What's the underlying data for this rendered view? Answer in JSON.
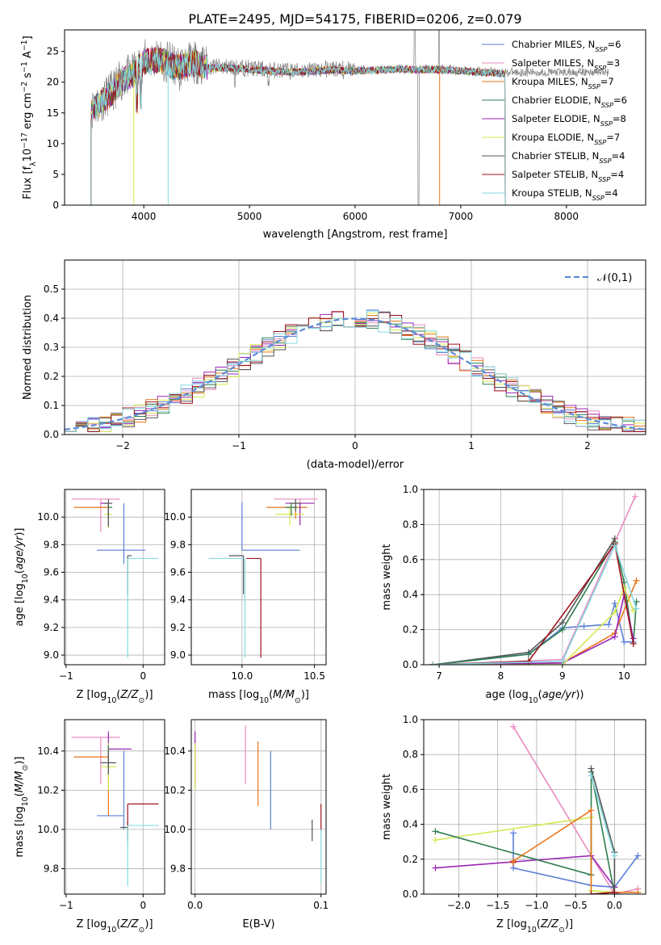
{
  "figure": {
    "title": "PLATE=2495, MJD=54175, FIBERID=0206, z=0.079"
  },
  "chart_data": [
    {
      "id": "spectrum",
      "type": "line",
      "xlabel": "wavelength [Angstrom, rest frame]",
      "ylabel": "Flux [f_λ10^-17 erg cm^-2 s^-1 A^-1]",
      "xlim": [
        3250,
        8750
      ],
      "ylim": [
        0,
        28.5
      ],
      "xticks": [
        4000,
        5000,
        6000,
        7000,
        8000
      ],
      "yticks": [
        0,
        5,
        10,
        15,
        20,
        25
      ],
      "grid": false,
      "legend": "top-right",
      "series": [
        {
          "name": "Chabrier MILES, N_SSP=6",
          "color": "#5b7fd6"
        },
        {
          "name": "Salpeter MILES, N_SSP=3",
          "color": "#e98bbf"
        },
        {
          "name": "Kroupa MILES, N_SSP=7",
          "color": "#e8751a"
        },
        {
          "name": "Chabrier ELODIE, N_SSP=6",
          "color": "#2e7d4f"
        },
        {
          "name": "Salpeter ELODIE, N_SSP=8",
          "color": "#9b26b6"
        },
        {
          "name": "Kroupa ELODIE, N_SSP=7",
          "color": "#d6e84f"
        },
        {
          "name": "Chabrier STELIB, N_SSP=4",
          "color": "#555555"
        },
        {
          "name": "Salpeter STELIB, N_SSP=4",
          "color": "#a0141e"
        },
        {
          "name": "Kroupa STELIB, N_SSP=4",
          "color": "#86d9e0"
        }
      ],
      "data_color": "#808080",
      "profile": {
        "x": [
          3500,
          3600,
          3700,
          3800,
          3900,
          4000,
          4100,
          4200,
          4300,
          4400,
          4500,
          4600,
          4800,
          5000,
          5200,
          5400,
          5600,
          5800,
          6000,
          6200,
          6400,
          6600,
          6800,
          7000,
          7200,
          7400
        ],
        "y": [
          15.5,
          17,
          18.5,
          20.5,
          21.5,
          23.5,
          23.8,
          23.5,
          22.5,
          23,
          23.2,
          22.5,
          22.5,
          22.3,
          22,
          21.8,
          22,
          22.2,
          22,
          22.1,
          22.3,
          22.2,
          22.2,
          22,
          21.8,
          21.6
        ]
      },
      "model_range": [
        3500,
        7420
      ],
      "data_range": [
        3500,
        8400
      ]
    },
    {
      "id": "residuals",
      "type": "bar",
      "xlabel": "(data-model)/error",
      "ylabel": "Normed distribution",
      "xlim": [
        -2.5,
        2.5
      ],
      "ylim": [
        0,
        0.6
      ],
      "xticks": [
        -2,
        -1,
        0,
        1,
        2
      ],
      "yticks": [
        0.0,
        0.1,
        0.2,
        0.3,
        0.4,
        0.5
      ],
      "grid": true,
      "legend": "top-right",
      "legend_label": "𝒩(0,1)",
      "gaussian": {
        "mean": 0,
        "sigma": 1,
        "color": "#5b8bd6"
      }
    },
    {
      "id": "age_vs_Z",
      "type": "scatter",
      "xlabel": "Z [log10(Z/Z⊙)]",
      "ylabel": "age [log10(age/yr)]",
      "xlim": [
        -1.02,
        0.28
      ],
      "ylim": [
        8.93,
        10.2
      ],
      "xticks": [
        -1,
        0
      ],
      "yticks": [
        9.0,
        9.2,
        9.4,
        9.6,
        9.8,
        10.0
      ],
      "grid": true,
      "points": [
        {
          "x": -0.55,
          "y": 10.13,
          "xerr": [
            0.38,
            0.25
          ],
          "yerr": [
            0.24,
            0.0
          ],
          "color": "#e98bbf"
        },
        {
          "x": -0.45,
          "y": 10.07,
          "xerr": [
            0.45,
            0.0
          ],
          "yerr": [
            0.1,
            0.0
          ],
          "color": "#e8751a"
        },
        {
          "x": -0.45,
          "y": 10.1,
          "xerr": [
            0.1,
            0.0
          ],
          "yerr": [
            0.16,
            0.0
          ],
          "color": "#9b26b6"
        },
        {
          "x": -0.45,
          "y": 10.02,
          "xerr": [
            0.05,
            0.05
          ],
          "yerr": [
            0.1,
            0.0
          ],
          "color": "#d6e84f"
        },
        {
          "x": -0.45,
          "y": 10.07,
          "xerr": [
            0.0,
            0.05
          ],
          "yerr": [
            0.08,
            0.03
          ],
          "color": "#2e7d4f"
        },
        {
          "x": -0.45,
          "y": 10.1,
          "xerr": [
            0.05,
            0.05
          ],
          "yerr": [
            0.17,
            0.03
          ],
          "color": "#555555"
        },
        {
          "x": -0.25,
          "y": 9.76,
          "xerr": [
            0.35,
            0.28
          ],
          "yerr": [
            0.1,
            0.34
          ],
          "color": "#5b7fd6"
        },
        {
          "x": -0.2,
          "y": 9.72,
          "xerr": [
            0.0,
            0.05
          ],
          "yerr": [
            0.28,
            0.0
          ],
          "color": "#555555"
        },
        {
          "x": -0.2,
          "y": 9.7,
          "xerr": [
            0.0,
            0.4
          ],
          "yerr": [
            0.72,
            0.0
          ],
          "color": "#86d9e0"
        }
      ]
    },
    {
      "id": "age_vs_mass",
      "type": "scatter",
      "xlabel": "mass [log10(M/M⊙)]",
      "ylabel": "",
      "xlim": [
        9.65,
        10.58
      ],
      "ylim": [
        8.93,
        10.2
      ],
      "xticks": [
        10.0,
        10.5
      ],
      "yticks": [
        9.0,
        9.2,
        9.4,
        9.6,
        9.8,
        10.0
      ],
      "grid": true,
      "points": [
        {
          "x": 10.4,
          "y": 10.13,
          "xerr": [
            0.18,
            0.12
          ],
          "yerr": [
            0.18,
            0.0
          ],
          "color": "#e98bbf"
        },
        {
          "x": 10.37,
          "y": 10.07,
          "xerr": [
            0.2,
            0.08
          ],
          "yerr": [
            0.08,
            0.0
          ],
          "color": "#e8751a"
        },
        {
          "x": 10.4,
          "y": 10.1,
          "xerr": [
            0.1,
            0.1
          ],
          "yerr": [
            0.16,
            0.0
          ],
          "color": "#9b26b6"
        },
        {
          "x": 10.33,
          "y": 10.02,
          "xerr": [
            0.1,
            0.1
          ],
          "yerr": [
            0.08,
            0.06
          ],
          "color": "#d6e84f"
        },
        {
          "x": 10.34,
          "y": 10.07,
          "xerr": [
            0.04,
            0.04
          ],
          "yerr": [
            0.06,
            0.03
          ],
          "color": "#2e7d4f"
        },
        {
          "x": 10.37,
          "y": 10.1,
          "xerr": [
            0.04,
            0.04
          ],
          "yerr": [
            0.06,
            0.03
          ],
          "color": "#555555"
        },
        {
          "x": 10.0,
          "y": 9.76,
          "xerr": [
            0.0,
            0.4
          ],
          "yerr": [
            0.0,
            0.35
          ],
          "color": "#5b7fd6"
        },
        {
          "x": 10.01,
          "y": 9.72,
          "xerr": [
            0.1,
            0.0
          ],
          "yerr": [
            0.28,
            0.0
          ],
          "color": "#555555"
        },
        {
          "x": 10.13,
          "y": 9.7,
          "xerr": [
            0.1,
            0.0
          ],
          "yerr": [
            0.72,
            0.0
          ],
          "color": "#a0141e"
        },
        {
          "x": 10.02,
          "y": 9.7,
          "xerr": [
            0.25,
            0.0
          ],
          "yerr": [
            0.72,
            0.0
          ],
          "color": "#86d9e0"
        }
      ]
    },
    {
      "id": "mass_weight_vs_age",
      "type": "line",
      "xlabel": "age (log10(age/yr))",
      "ylabel": "mass weight",
      "xlim": [
        6.75,
        10.35
      ],
      "ylim": [
        0,
        1
      ],
      "xticks": [
        7,
        8,
        9,
        10
      ],
      "yticks": [
        0.0,
        0.2,
        0.4,
        0.6,
        0.8,
        1.0
      ],
      "grid": true,
      "series": [
        {
          "color": "#555555",
          "x": [
            6.9,
            8.45,
            9.0,
            9.85
          ],
          "y": [
            0.0,
            0.07,
            0.24,
            0.72
          ]
        },
        {
          "color": "#5b7fd6",
          "x": [
            6.9,
            8.45,
            9.0,
            9.35,
            9.75,
            9.85,
            10.0,
            10.15
          ],
          "y": [
            0.0,
            0.06,
            0.21,
            0.22,
            0.23,
            0.35,
            0.13,
            0.13
          ]
        },
        {
          "color": "#e98bbf",
          "x": [
            6.9,
            9.0,
            10.18
          ],
          "y": [
            0.0,
            0.03,
            0.96
          ]
        },
        {
          "color": "#e8751a",
          "x": [
            6.9,
            9.0,
            9.85,
            10.2
          ],
          "y": [
            0.0,
            0.01,
            0.18,
            0.48
          ]
        },
        {
          "color": "#2e7d4f",
          "x": [
            6.9,
            8.45,
            9.0,
            9.85,
            10.0,
            10.15,
            10.2
          ],
          "y": [
            0.0,
            0.06,
            0.2,
            0.7,
            0.47,
            0.12,
            0.36
          ]
        },
        {
          "color": "#9b26b6",
          "x": [
            6.9,
            9.0,
            9.85,
            10.0,
            10.15
          ],
          "y": [
            0.0,
            0.01,
            0.16,
            0.4,
            0.15
          ]
        },
        {
          "color": "#d6e84f",
          "x": [
            6.9,
            9.0,
            9.85,
            10.0,
            10.15
          ],
          "y": [
            0.0,
            0.0,
            0.3,
            0.44,
            0.31
          ]
        },
        {
          "color": "#a0141e",
          "x": [
            6.9,
            8.45,
            9.85,
            10.15
          ],
          "y": [
            0.0,
            0.02,
            0.69,
            0.12
          ]
        },
        {
          "color": "#86d9e0",
          "x": [
            6.9,
            9.0,
            9.85,
            10.2
          ],
          "y": [
            0.0,
            0.02,
            0.68,
            0.32
          ]
        }
      ]
    },
    {
      "id": "mass_vs_Z",
      "type": "scatter",
      "xlabel": "Z [log10(Z/Z⊙)]",
      "ylabel": "mass [log10(M/M⊙)]",
      "xlim": [
        -1.02,
        0.28
      ],
      "ylim": [
        9.67,
        10.56
      ],
      "xticks": [
        -1,
        0
      ],
      "yticks": [
        9.8,
        10.0,
        10.2,
        10.4
      ],
      "grid": true,
      "points": [
        {
          "x": -0.55,
          "y": 10.47,
          "xerr": [
            0.38,
            0.25
          ],
          "yerr": [
            0.24,
            0.0
          ],
          "color": "#e98bbf"
        },
        {
          "x": -0.45,
          "y": 10.37,
          "xerr": [
            0.45,
            0.0
          ],
          "yerr": [
            0.3,
            0.08
          ],
          "color": "#e8751a"
        },
        {
          "x": -0.45,
          "y": 10.41,
          "xerr": [
            0.0,
            0.3
          ],
          "yerr": [
            0.09,
            0.09
          ],
          "color": "#9b26b6"
        },
        {
          "x": -0.45,
          "y": 10.32,
          "xerr": [
            0.1,
            0.1
          ],
          "yerr": [
            0.12,
            0.12
          ],
          "color": "#d6e84f"
        },
        {
          "x": -0.45,
          "y": 10.37,
          "xerr": [
            0.0,
            0.0
          ],
          "yerr": [
            0.06,
            0.06
          ],
          "color": "#2e7d4f"
        },
        {
          "x": -0.45,
          "y": 10.34,
          "xerr": [
            0.1,
            0.1
          ],
          "yerr": [
            0.06,
            0.06
          ],
          "color": "#555555"
        },
        {
          "x": -0.25,
          "y": 10.07,
          "xerr": [
            0.35,
            0.0
          ],
          "yerr": [
            0.07,
            0.33
          ],
          "color": "#5b7fd6"
        },
        {
          "x": -0.2,
          "y": 10.01,
          "xerr": [
            0.1,
            0.0
          ],
          "yerr": [
            0.07,
            0.03
          ],
          "color": "#555555"
        },
        {
          "x": -0.2,
          "y": 10.13,
          "xerr": [
            0.0,
            0.4
          ],
          "yerr": [
            0.13,
            0.0
          ],
          "color": "#a0141e"
        },
        {
          "x": -0.2,
          "y": 10.02,
          "xerr": [
            0.0,
            0.4
          ],
          "yerr": [
            0.31,
            0.0
          ],
          "color": "#86d9e0"
        }
      ]
    },
    {
      "id": "mass_vs_ebv",
      "type": "scatter",
      "xlabel": "E(B-V)",
      "ylabel": "",
      "xlim": [
        -0.003,
        0.104
      ],
      "ylim": [
        9.67,
        10.56
      ],
      "xticks": [
        0.0,
        0.1
      ],
      "yticks": [
        9.8,
        10.0,
        10.2,
        10.4
      ],
      "grid": true,
      "segments": [
        {
          "x": 0.0,
          "y0": 10.21,
          "y1": 10.5,
          "color": "#9b26b6"
        },
        {
          "x": 0.0,
          "y0": 10.2,
          "y1": 10.44,
          "color": "#d6e84f"
        },
        {
          "x": 0.04,
          "y0": 10.23,
          "y1": 10.53,
          "color": "#e98bbf"
        },
        {
          "x": 0.05,
          "y0": 10.12,
          "y1": 10.45,
          "color": "#e8751a"
        },
        {
          "x": 0.06,
          "y0": 10.0,
          "y1": 10.4,
          "color": "#5b7fd6"
        },
        {
          "x": 0.093,
          "y0": 9.94,
          "y1": 10.05,
          "color": "#555555"
        },
        {
          "x": 0.1,
          "y0": 10.0,
          "y1": 10.13,
          "color": "#a0141e"
        },
        {
          "x": 0.1,
          "y0": 9.73,
          "y1": 10.0,
          "color": "#86d9e0"
        }
      ]
    },
    {
      "id": "mass_weight_vs_Z",
      "type": "line",
      "xlabel": "Z [log10(Z/Z⊙)]",
      "ylabel": "mass weight",
      "xlim": [
        -2.45,
        0.4
      ],
      "ylim": [
        0,
        1
      ],
      "xticks": [
        -2.0,
        -1.5,
        -1.0,
        -0.5,
        0.0
      ],
      "yticks": [
        0.0,
        0.2,
        0.4,
        0.6,
        0.8,
        1.0
      ],
      "grid": true,
      "series": [
        {
          "color": "#e98bbf",
          "x": [
            -1.3,
            0.0,
            0.3
          ],
          "y": [
            0.96,
            0.0,
            0.03
          ]
        },
        {
          "color": "#5b7fd6",
          "x": [
            -1.3,
            -1.3,
            -0.3,
            0.0,
            0.3
          ],
          "y": [
            0.35,
            0.15,
            0.05,
            0.04,
            0.22
          ]
        },
        {
          "color": "#9b26b6",
          "x": [
            -2.3,
            -0.3,
            0.0
          ],
          "y": [
            0.15,
            0.22,
            0.04
          ]
        },
        {
          "color": "#d6e84f",
          "x": [
            -2.3,
            -0.3,
            -0.3,
            0.0
          ],
          "y": [
            0.31,
            0.44,
            0.02,
            0.01
          ]
        },
        {
          "color": "#2e7d4f",
          "x": [
            -2.3,
            -0.3,
            -0.3,
            0.0
          ],
          "y": [
            0.36,
            0.11,
            0.7,
            0.0
          ]
        },
        {
          "color": "#e8751a",
          "x": [
            -1.3,
            -1.3,
            -0.3,
            -0.3,
            0.0,
            0.3
          ],
          "y": [
            0.18,
            0.19,
            0.48,
            0.0,
            0.01,
            0.01
          ]
        },
        {
          "color": "#555555",
          "x": [
            -0.3,
            0.0,
            0.0
          ],
          "y": [
            0.72,
            0.24,
            0.01
          ]
        },
        {
          "color": "#86d9e0",
          "x": [
            -0.3,
            0.0
          ],
          "y": [
            0.68,
            0.22
          ]
        },
        {
          "color": "#a0141e",
          "x": [
            -0.3,
            0.0
          ],
          "y": [
            0.0,
            0.01
          ]
        }
      ]
    }
  ]
}
